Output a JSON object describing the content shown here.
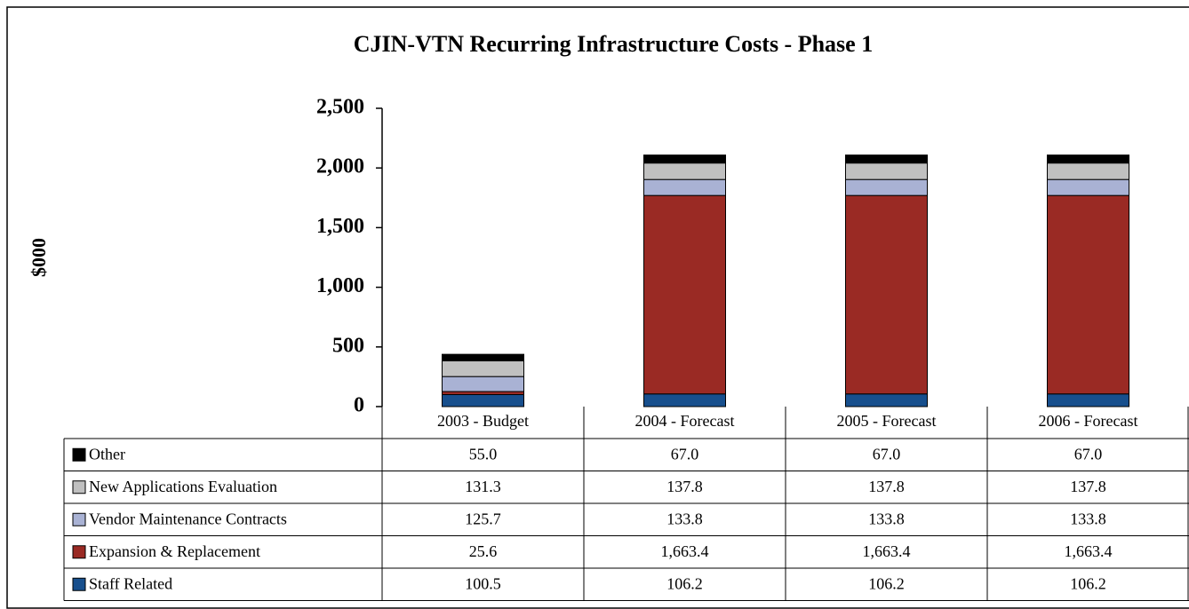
{
  "chart_data": {
    "type": "stacked_bar",
    "title": "CJIN-VTN Recurring Infrastructure Costs - Phase 1",
    "y_label": "$000",
    "categories": [
      "2003 - Budget",
      "2004 - Forecast",
      "2005 - Forecast",
      "2006 - Forecast"
    ],
    "series": [
      {
        "name": "Staff Related",
        "color": "#174f8d",
        "values": [
          100.5,
          106.2,
          106.2,
          106.2
        ],
        "value_labels": [
          "100.5",
          "106.2",
          "106.2",
          "106.2"
        ]
      },
      {
        "name": "Expansion & Replacement",
        "color": "#9a2a24",
        "values": [
          25.6,
          1663.4,
          1663.4,
          1663.4
        ],
        "value_labels": [
          "25.6",
          "1,663.4",
          "1,663.4",
          "1,663.4"
        ]
      },
      {
        "name": "Vendor Maintenance Contracts",
        "color": "#a9b2d4",
        "values": [
          125.7,
          133.8,
          133.8,
          133.8
        ],
        "value_labels": [
          "125.7",
          "133.8",
          "133.8",
          "133.8"
        ]
      },
      {
        "name": "New Applications Evaluation",
        "color": "#c0c0c0",
        "values": [
          131.3,
          137.8,
          137.8,
          137.8
        ],
        "value_labels": [
          "131.3",
          "137.8",
          "137.8",
          "137.8"
        ]
      },
      {
        "name": "Other",
        "color": "#000000",
        "values": [
          55.0,
          67.0,
          67.0,
          67.0
        ],
        "value_labels": [
          "55.0",
          "67.0",
          "67.0",
          "67.0"
        ]
      }
    ],
    "ylim": [
      0,
      2500
    ],
    "yticks": [
      0,
      500,
      {
        "value": 1000,
        "label": "1,000"
      },
      {
        "value": 1500,
        "label": "1,500"
      },
      {
        "value": 2000,
        "label": "2,000"
      },
      {
        "value": 2500,
        "label": "2,500"
      }
    ]
  }
}
